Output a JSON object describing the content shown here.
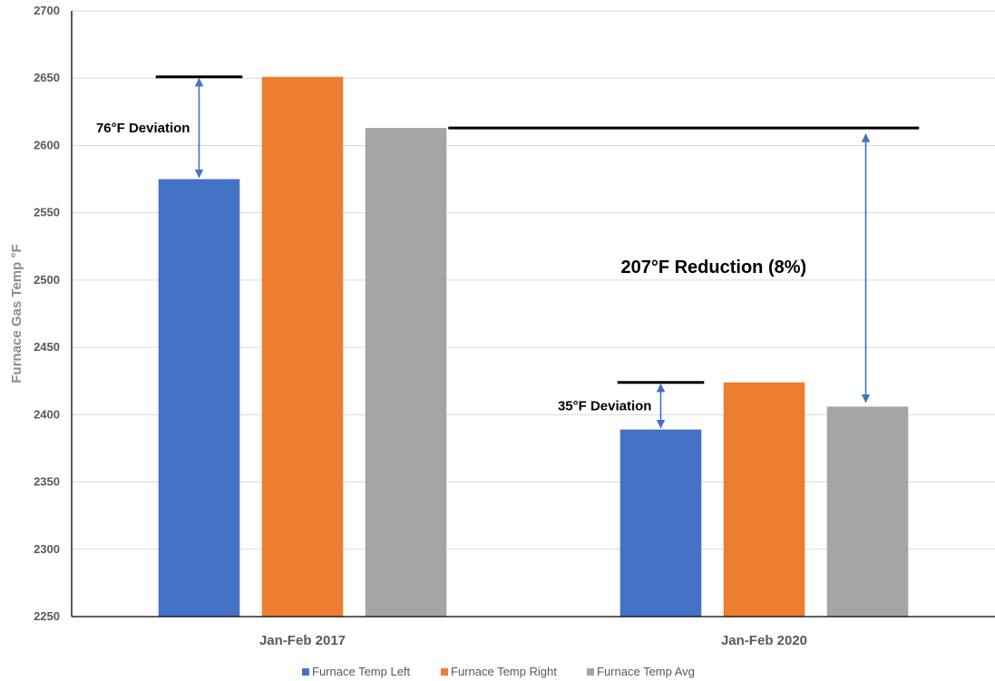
{
  "chart_data": {
    "type": "bar",
    "categories": [
      "Jan-Feb 2017",
      "Jan-Feb 2020"
    ],
    "series": [
      {
        "name": "Furnace Temp Left",
        "values": [
          2575,
          2389
        ],
        "color": "#4472c4"
      },
      {
        "name": "Furnace Temp Right",
        "values": [
          2651,
          2424
        ],
        "color": "#ed7d31"
      },
      {
        "name": "Furnace Temp Avg",
        "values": [
          2613,
          2406
        ],
        "color": "#a5a5a5"
      }
    ],
    "xlabel": "",
    "ylabel": "Furnace Gas Temp °F",
    "ylim": [
      2250,
      2700
    ],
    "yticks": [
      2250,
      2300,
      2350,
      2400,
      2450,
      2500,
      2550,
      2600,
      2650,
      2700
    ],
    "grid": true,
    "legend_position": "bottom",
    "reference_lines": [
      {
        "category": "Jan-Feb 2017",
        "value": 2651
      },
      {
        "category": "Jan-Feb 2017",
        "value": 2613,
        "extends_to": "Jan-Feb 2020"
      },
      {
        "category": "Jan-Feb 2020",
        "value": 2424
      }
    ],
    "annotations": [
      {
        "text": "76°F Deviation",
        "from": 2575,
        "to": 2651,
        "category": "Jan-Feb 2017"
      },
      {
        "text": "35°F Deviation",
        "from": 2389,
        "to": 2424,
        "category": "Jan-Feb 2020"
      },
      {
        "text": "207°F Reduction (8%)",
        "from": 2406,
        "to": 2613,
        "category": "Jan-Feb 2020"
      }
    ]
  }
}
